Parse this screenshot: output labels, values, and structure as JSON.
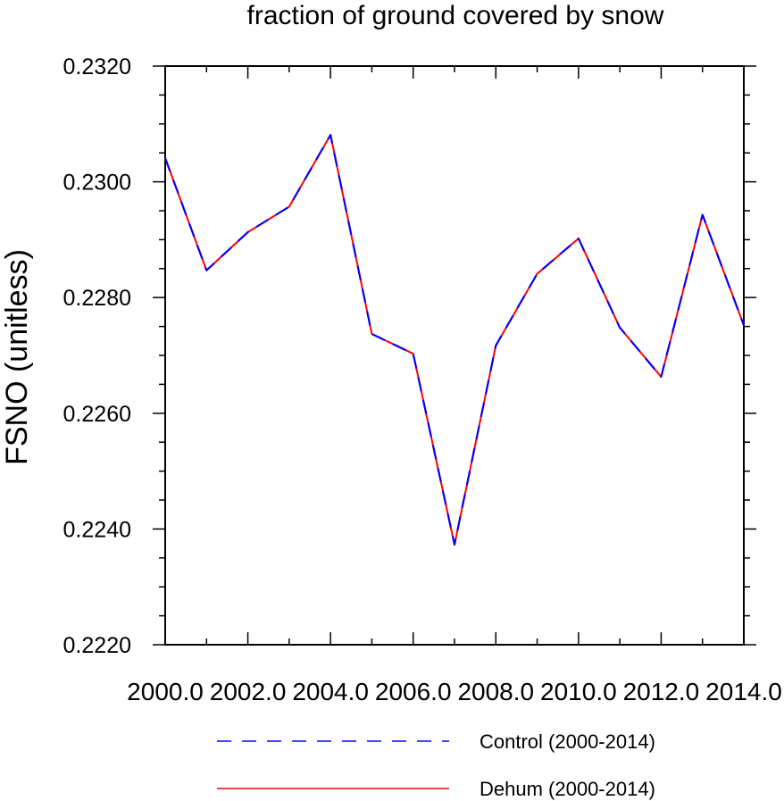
{
  "chart_data": {
    "type": "line",
    "title": "fraction of ground covered by snow",
    "xlabel": "",
    "ylabel": "FSNO  (unitless)",
    "xlim": [
      2000,
      2014
    ],
    "ylim": [
      0.222,
      0.232
    ],
    "x": [
      2000,
      2001,
      2002,
      2003,
      2004,
      2005,
      2006,
      2007,
      2008,
      2009,
      2010,
      2011,
      2012,
      2013,
      2014
    ],
    "x_tick_labels": [
      "2000.0",
      "2002.0",
      "2004.0",
      "2006.0",
      "2008.0",
      "2010.0",
      "2012.0",
      "2014.0"
    ],
    "y_tick_labels": [
      "0.2220",
      "0.2240",
      "0.2260",
      "0.2280",
      "0.2300",
      "0.2320"
    ],
    "grid": false,
    "legend_position": "bottom",
    "series": [
      {
        "name": "Control (2000-2014)",
        "color": "#0000ff",
        "style": "dashed",
        "values": [
          0.23041,
          0.22847,
          0.22913,
          0.22957,
          0.23081,
          0.22737,
          0.22703,
          0.22373,
          0.22717,
          0.22841,
          0.22902,
          0.22748,
          0.22663,
          0.22943,
          0.22752
        ]
      },
      {
        "name": "Dehum (2000-2014)",
        "color": "#ff0000",
        "style": "solid",
        "values": [
          0.23041,
          0.22847,
          0.22913,
          0.22957,
          0.23081,
          0.22737,
          0.22703,
          0.22373,
          0.22717,
          0.22841,
          0.22902,
          0.22748,
          0.22663,
          0.22943,
          0.22752
        ]
      }
    ]
  }
}
